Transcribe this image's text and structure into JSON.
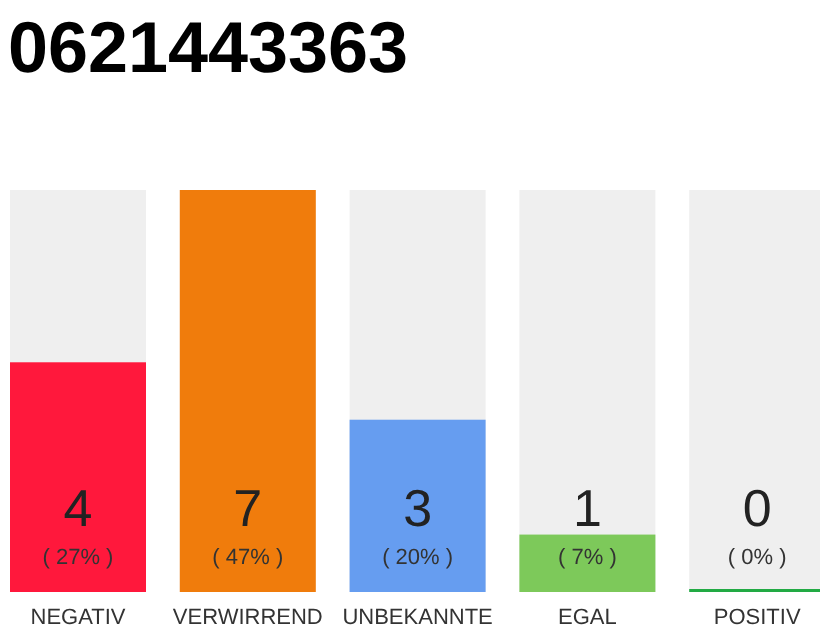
{
  "chart_data": {
    "type": "bar",
    "title": "0621443363",
    "categories": [
      "NEGATIV",
      "VERWIRREND",
      "UNBEKANNTE",
      "EGAL",
      "POSITIV"
    ],
    "values": [
      4,
      7,
      3,
      1,
      0
    ],
    "colors": [
      "#ff183c",
      "#f07c0c",
      "#669df0",
      "#7dc95a",
      "#22aa44"
    ],
    "data_labels": true,
    "annotations": [
      "( 27% )",
      "( 47% )",
      "( 20% )",
      "( 7% )",
      "( 0% )"
    ]
  }
}
